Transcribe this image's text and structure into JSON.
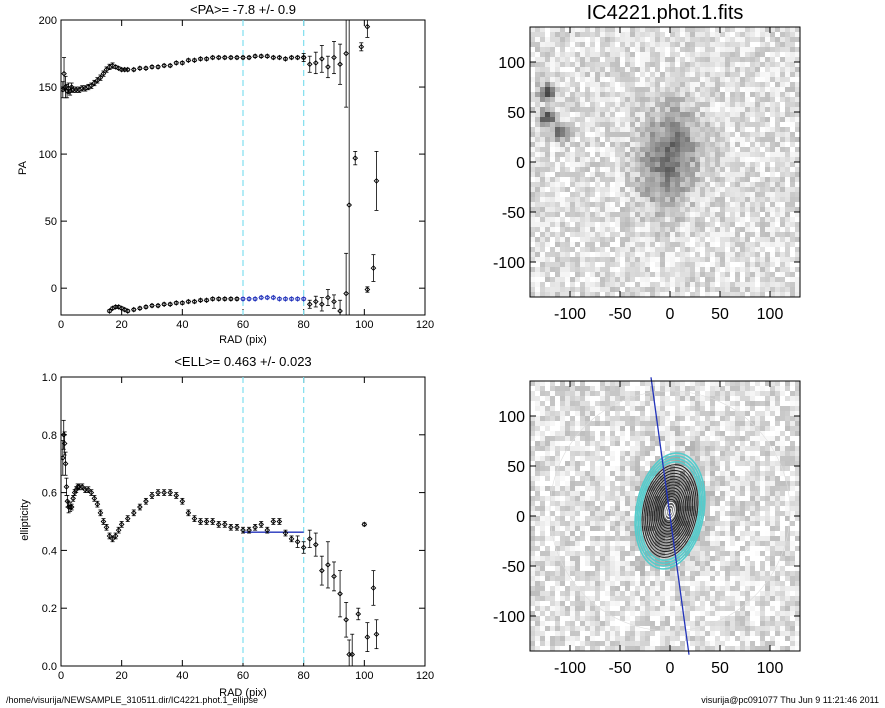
{
  "chart_data": [
    {
      "id": "pa",
      "type": "scatter",
      "title": "<PA>=  -7.8 +/-   0.9",
      "xlabel": "RAD (pix)",
      "ylabel": "PA",
      "xlim": [
        0,
        120
      ],
      "ylim": [
        -20,
        200
      ],
      "xticks": [
        0,
        20,
        40,
        60,
        80,
        100,
        120
      ],
      "yticks": [
        0,
        50,
        100,
        150,
        200
      ],
      "grid": false,
      "vlines": [
        60,
        80
      ],
      "vline_color": "#7fdfef",
      "fit_color": "#2233bb",
      "series": [
        {
          "x": [
            0.6,
            1.0,
            1.5,
            2.0,
            2.5,
            3.0,
            3.5,
            4.0,
            5.0,
            6.0,
            7.0,
            8.0,
            9.0,
            10.0,
            11.0,
            12.0,
            13.0,
            14.0,
            15.0,
            16.0,
            17.0,
            18.0,
            19.0,
            20.0,
            21.0,
            22.0,
            24.0,
            26.0,
            28.0,
            30.0,
            32.0,
            34.0,
            36.0,
            38.0,
            40.0,
            42.0,
            44.0,
            46.0,
            48.0,
            50.0,
            52.0,
            54.0,
            56.0,
            58.0,
            60.0,
            62.0,
            64.0,
            66.0,
            68.0,
            70.0,
            72.0,
            74.0,
            76.0,
            78.0,
            80.0
          ],
          "y": [
            148,
            160,
            150,
            147,
            149,
            147,
            150,
            148,
            148,
            148,
            149,
            149,
            150,
            151,
            153,
            155,
            157,
            160,
            163,
            165,
            166,
            165,
            164,
            163,
            163,
            163,
            163,
            164,
            164,
            165,
            165,
            166,
            166,
            168,
            168,
            170,
            170,
            171,
            171,
            172,
            172,
            172,
            172,
            172,
            172,
            172,
            173,
            173,
            173,
            172,
            172,
            171,
            172,
            172,
            172
          ],
          "err": [
            6,
            12,
            8,
            5,
            4,
            3,
            3,
            2,
            2,
            2,
            2,
            2,
            2,
            2,
            2,
            2,
            2,
            2,
            2,
            2,
            2,
            1,
            1,
            1,
            1,
            1,
            1,
            1,
            1,
            1,
            1,
            1,
            1,
            1,
            1,
            1,
            1,
            1,
            1,
            1,
            1,
            1,
            1,
            1,
            1,
            1,
            1,
            1,
            1,
            1,
            1,
            1,
            1,
            1,
            1
          ]
        },
        {
          "x": [
            16,
            17,
            18,
            19,
            20,
            21,
            22,
            24,
            26,
            28,
            30,
            32,
            34,
            36,
            38,
            40,
            42,
            44,
            46,
            48,
            50,
            52,
            54,
            56,
            58
          ],
          "y": [
            -17,
            -15,
            -14,
            -14,
            -15,
            -16,
            -17,
            -16,
            -15,
            -14,
            -13,
            -13,
            -12,
            -12,
            -11,
            -11,
            -10,
            -10,
            -9,
            -9,
            -8,
            -8,
            -8,
            -8,
            -8
          ],
          "err": [
            1,
            1,
            1,
            1,
            1,
            1,
            1,
            1,
            1,
            1,
            1,
            1,
            1,
            1,
            1,
            1,
            1,
            1,
            1,
            1,
            1,
            1,
            1,
            1,
            1
          ]
        },
        {
          "color": "#2233bb",
          "x": [
            60,
            62,
            64,
            66,
            68,
            70,
            72,
            74,
            76,
            78,
            80
          ],
          "y": [
            -8,
            -8,
            -8,
            -7,
            -7,
            -7,
            -8,
            -8,
            -8,
            -8,
            -8
          ],
          "err": [
            1,
            1,
            1,
            1,
            1,
            1,
            1,
            1,
            1,
            1,
            1
          ]
        },
        {
          "x": [
            80,
            82,
            84,
            86,
            88,
            90,
            92,
            94,
            95,
            97,
            99,
            101,
            103,
            104
          ],
          "y": [
            172,
            167,
            168,
            171,
            165,
            172,
            167,
            175,
            62,
            97,
            180,
            195,
            15,
            80
          ],
          "err": [
            3,
            6,
            8,
            10,
            8,
            12,
            15,
            40,
            200,
            5,
            3,
            8,
            10,
            22
          ]
        },
        {
          "x": [
            82,
            84,
            86,
            88,
            90,
            92,
            94
          ],
          "y": [
            -12,
            -10,
            -12,
            -7,
            -10,
            -17,
            -4
          ],
          "err": [
            3,
            4,
            5,
            6,
            5,
            8,
            30
          ]
        },
        {
          "x": [
            101
          ],
          "y": [
            -1
          ],
          "err": [
            2
          ]
        }
      ]
    },
    {
      "id": "ell",
      "type": "scatter",
      "title": "<ELL>= 0.463 +/-  0.023",
      "xlabel": "RAD (pix)",
      "ylabel": "ellipticity",
      "xlim": [
        0,
        120
      ],
      "ylim": [
        0,
        1.0
      ],
      "xticks": [
        0,
        20,
        40,
        60,
        80,
        100,
        120
      ],
      "yticks": [
        0.0,
        0.2,
        0.4,
        0.6,
        0.8,
        1.0
      ],
      "ytick_labels": [
        "0.0",
        "0.2",
        "0.4",
        "0.6",
        "0.8",
        "1.0"
      ],
      "grid": false,
      "vlines": [
        60,
        80
      ],
      "vline_color": "#7fdfef",
      "fit": {
        "x": [
          60,
          80
        ],
        "y": 0.463
      },
      "fit_color": "#2233bb",
      "series": [
        {
          "x": [
            0.6,
            0.9,
            1.2,
            1.5,
            1.8,
            2.1,
            2.5,
            3.0,
            3.5,
            4.0,
            4.5,
            5.0,
            5.5,
            6.0,
            7.0,
            8.0,
            9.0,
            10.0,
            11.0,
            12.0,
            13.0,
            14.0,
            15.0,
            16.0,
            17.0,
            18.0,
            19.0,
            20.0,
            22.0,
            24.0,
            26.0,
            28.0,
            30.0,
            32.0,
            34.0,
            36.0,
            38.0,
            40.0,
            42.0,
            44.0,
            46.0,
            48.0,
            50.0,
            52.0,
            54.0,
            56.0,
            58.0,
            60.0
          ],
          "y": [
            0.72,
            0.8,
            0.77,
            0.7,
            0.62,
            0.57,
            0.55,
            0.55,
            0.55,
            0.58,
            0.6,
            0.61,
            0.62,
            0.62,
            0.62,
            0.61,
            0.61,
            0.6,
            0.58,
            0.56,
            0.53,
            0.5,
            0.48,
            0.45,
            0.44,
            0.45,
            0.47,
            0.49,
            0.51,
            0.53,
            0.55,
            0.57,
            0.59,
            0.6,
            0.6,
            0.6,
            0.59,
            0.57,
            0.53,
            0.51,
            0.5,
            0.5,
            0.5,
            0.49,
            0.49,
            0.48,
            0.48,
            0.47
          ],
          "err": [
            0.06,
            0.05,
            0.04,
            0.04,
            0.03,
            0.02,
            0.02,
            0.015,
            0.01,
            0.01,
            0.01,
            0.01,
            0.01,
            0.01,
            0.01,
            0.01,
            0.01,
            0.01,
            0.01,
            0.01,
            0.01,
            0.01,
            0.01,
            0.01,
            0.01,
            0.01,
            0.01,
            0.01,
            0.01,
            0.01,
            0.01,
            0.01,
            0.01,
            0.01,
            0.01,
            0.01,
            0.01,
            0.01,
            0.01,
            0.01,
            0.01,
            0.01,
            0.01,
            0.01,
            0.01,
            0.01,
            0.01,
            0.01
          ]
        },
        {
          "x": [
            62,
            64,
            66,
            68,
            70,
            72,
            74,
            76,
            78,
            80,
            82,
            84,
            86,
            88,
            90,
            92,
            94,
            95,
            96,
            98,
            100,
            101,
            103,
            104
          ],
          "y": [
            0.47,
            0.48,
            0.49,
            0.47,
            0.5,
            0.5,
            0.46,
            0.44,
            0.43,
            0.41,
            0.44,
            0.42,
            0.33,
            0.35,
            0.31,
            0.25,
            0.16,
            0.04,
            0.04,
            0.18,
            0.49,
            0.1,
            0.27,
            0.11
          ],
          "err": [
            0.01,
            0.01,
            0.01,
            0.01,
            0.01,
            0.01,
            0.01,
            0.01,
            0.02,
            0.02,
            0.03,
            0.04,
            0.05,
            0.08,
            0.05,
            0.08,
            0.06,
            0.05,
            0.07,
            0.02,
            0.005,
            0.05,
            0.06,
            0.05
          ]
        }
      ]
    },
    {
      "id": "img-raw",
      "type": "heatmap",
      "title": "IC4221.phot.1.fits",
      "xlabel": "",
      "ylabel": "",
      "xlim": [
        -140,
        130
      ],
      "ylim": [
        -135,
        135
      ],
      "xticks": [
        -100,
        -50,
        0,
        50,
        100
      ],
      "yticks": [
        -100,
        -50,
        0,
        50,
        100
      ],
      "colormap": "gray",
      "galaxy": {
        "cx": 0,
        "cy": 5,
        "a": 45,
        "b": 26,
        "pa_deg": 10
      },
      "stars": [
        {
          "x": -123,
          "y": 45
        },
        {
          "x": -123,
          "y": 70
        },
        {
          "x": -110,
          "y": 30
        }
      ]
    },
    {
      "id": "img-contours",
      "type": "heatmap",
      "title": "",
      "xlabel": "",
      "ylabel": "",
      "xlim": [
        -140,
        130
      ],
      "ylim": [
        -135,
        135
      ],
      "xticks": [
        -100,
        -50,
        0,
        50,
        100
      ],
      "yticks": [
        -100,
        -50,
        0,
        50,
        100
      ],
      "colormap": "gray",
      "pa_line_deg": -7.8,
      "pa_line_color": "#2233bb",
      "galaxy": {
        "cx": 0,
        "cy": 5,
        "a": 45,
        "b": 26,
        "pa_deg": 10
      },
      "contour_color": "#ffffff",
      "outer_contour_color": "#55cccc",
      "masked_color": "#ffffff"
    }
  ],
  "footer": {
    "left": "/home/visurija/NEWSAMPLE_310511.dir/IC4221.phot.1_ellipse",
    "right": "visurija@pc091077  Thu Jun  9 11:21:46 2011"
  }
}
